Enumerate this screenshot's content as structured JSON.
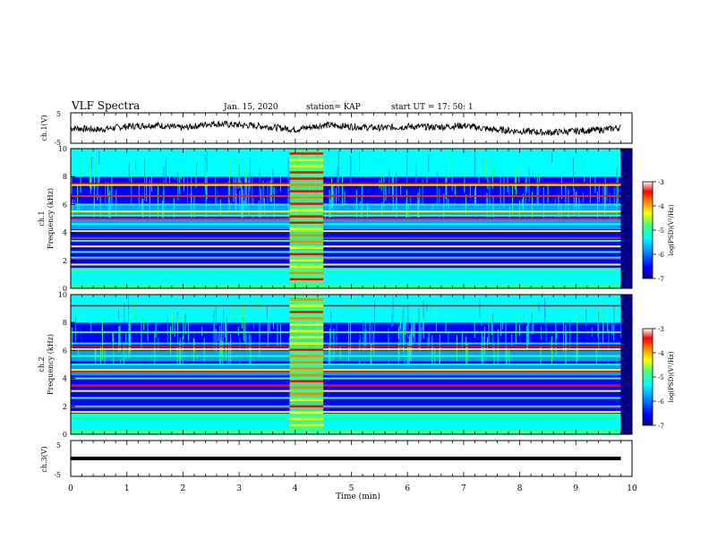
{
  "header": {
    "title": "VLF Spectra",
    "date": "Jan. 15, 2020",
    "station": "station= KAP",
    "start": "start  UT =   17: 50: 1"
  },
  "colorbar": {
    "label": "log(PSD)(V²/Hz)",
    "ticks": [
      "-3",
      "-4",
      "-5",
      "-6",
      "-7"
    ],
    "stops": [
      "#000080",
      "#0000ff",
      "#00a0ff",
      "#00ffff",
      "#40ff80",
      "#ffff00",
      "#ff8000",
      "#ff0000",
      "#ffffff"
    ]
  },
  "chart_data": [
    {
      "type": "line",
      "panel": "ch1-waveform",
      "ylabel": "ch.1(V)",
      "ylim": [
        -5,
        5
      ],
      "yticks": [
        "5",
        "-5"
      ],
      "xlim": [
        0,
        10
      ],
      "series": [
        {
          "x": [
            0,
            0.5,
            1,
            1.5,
            2,
            2.5,
            3,
            3.5,
            4,
            4.5,
            5,
            5.5,
            6,
            6.5,
            7,
            7.5,
            8,
            8.5,
            9,
            9.5,
            9.8
          ],
          "y": [
            0,
            -0.5,
            0.5,
            1,
            0,
            1.5,
            1,
            0.5,
            -0.5,
            1,
            0.5,
            0,
            0.5,
            0.3,
            0.8,
            -0.5,
            -1,
            -1.5,
            -1,
            -0.5,
            0.2
          ]
        }
      ]
    },
    {
      "type": "heatmap",
      "panel": "ch1-spectrogram",
      "ylabel": "ch.1\nFrequency (kHz)",
      "yticks": [
        "0",
        "2",
        "4",
        "6",
        "8",
        "10"
      ],
      "ylim": [
        0,
        10
      ],
      "xlim": [
        0,
        9.8
      ],
      "zlim": [
        -7,
        -3
      ],
      "burst_time_min": [
        3.9,
        4.5
      ],
      "bands_khz": [
        0.6,
        1.3,
        1.7,
        2.2,
        2.6,
        3.0,
        3.4,
        3.6,
        4.1,
        4.6,
        5.2,
        5.5,
        6.0,
        6.6,
        7.4
      ],
      "strong_lines_khz": [
        2.1,
        3.6,
        5.0,
        6.6,
        7.5
      ]
    },
    {
      "type": "heatmap",
      "panel": "ch2-spectrogram",
      "ylabel": "ch.2\nFrequency (kHz)",
      "yticks": [
        "0",
        "2",
        "4",
        "6",
        "8",
        "10"
      ],
      "ylim": [
        0,
        10
      ],
      "xlim": [
        0,
        9.8
      ],
      "zlim": [
        -7,
        -3
      ],
      "burst_time_min": [
        3.9,
        4.5
      ],
      "bands_khz": [
        0.5,
        1.2,
        1.6,
        2.0,
        2.6,
        3.1,
        3.5,
        4.0,
        4.6,
        5.0,
        5.6,
        6.1,
        6.5,
        7.3
      ],
      "strong_lines_khz": [
        1.9,
        3.5,
        4.5,
        6.3,
        9.2
      ]
    },
    {
      "type": "line",
      "panel": "ch3-waveform",
      "ylabel": "ch.3(V)",
      "ylim": [
        -5,
        5
      ],
      "yticks": [
        "5",
        "-5"
      ],
      "xlim": [
        0,
        10
      ],
      "xlabel": "Time  (min)",
      "xticks": [
        "0",
        "1",
        "2",
        "3",
        "4",
        "5",
        "6",
        "7",
        "8",
        "9",
        "10"
      ],
      "series": [
        {
          "x": [
            0,
            9.8
          ],
          "y": [
            0,
            0
          ]
        }
      ]
    }
  ]
}
